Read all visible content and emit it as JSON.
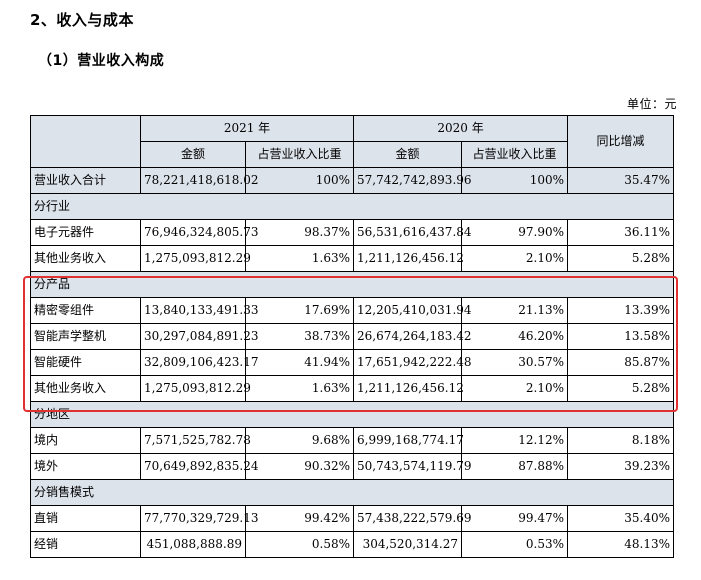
{
  "heading": "2、收入与成本",
  "subheading": "（1）营业收入构成",
  "unit": "单位：元",
  "header": {
    "year_2021": "2021 年",
    "year_2020": "2020 年",
    "yoy": "同比增减",
    "amount": "金额",
    "ratio": "占营业收入比重"
  },
  "rows": {
    "total": {
      "label": "营业收入合计",
      "amt2021": "78,221,418,618.02",
      "pct2021": "100%",
      "amt2020": "57,742,742,893.96",
      "pct2020": "100%",
      "yoy": "35.47%"
    },
    "sec_industry": "分行业",
    "ind1": {
      "label": "电子元器件",
      "amt2021": "76,946,324,805.73",
      "pct2021": "98.37%",
      "amt2020": "56,531,616,437.84",
      "pct2020": "97.90%",
      "yoy": "36.11%"
    },
    "ind2": {
      "label": "其他业务收入",
      "amt2021": "1,275,093,812.29",
      "pct2021": "1.63%",
      "amt2020": "1,211,126,456.12",
      "pct2020": "2.10%",
      "yoy": "5.28%"
    },
    "sec_product": "分产品",
    "prd1": {
      "label": "精密零组件",
      "amt2021": "13,840,133,491.33",
      "pct2021": "17.69%",
      "amt2020": "12,205,410,031.94",
      "pct2020": "21.13%",
      "yoy": "13.39%"
    },
    "prd2": {
      "label": "智能声学整机",
      "amt2021": "30,297,084,891.23",
      "pct2021": "38.73%",
      "amt2020": "26,674,264,183.42",
      "pct2020": "46.20%",
      "yoy": "13.58%"
    },
    "prd3": {
      "label": "智能硬件",
      "amt2021": "32,809,106,423.17",
      "pct2021": "41.94%",
      "amt2020": "17,651,942,222.48",
      "pct2020": "30.57%",
      "yoy": "85.87%"
    },
    "prd4": {
      "label": "其他业务收入",
      "amt2021": "1,275,093,812.29",
      "pct2021": "1.63%",
      "amt2020": "1,211,126,456.12",
      "pct2020": "2.10%",
      "yoy": "5.28%"
    },
    "sec_region": "分地区",
    "reg1": {
      "label": "境内",
      "amt2021": "7,571,525,782.78",
      "pct2021": "9.68%",
      "amt2020": "6,999,168,774.17",
      "pct2020": "12.12%",
      "yoy": "8.18%"
    },
    "reg2": {
      "label": "境外",
      "amt2021": "70,649,892,835.24",
      "pct2021": "90.32%",
      "amt2020": "50,743,574,119.79",
      "pct2020": "87.88%",
      "yoy": "39.23%"
    },
    "sec_sales": "分销售模式",
    "sal1": {
      "label": "直销",
      "amt2021": "77,770,329,729.13",
      "pct2021": "99.42%",
      "amt2020": "57,438,222,579.69",
      "pct2020": "99.47%",
      "yoy": "35.40%"
    },
    "sal2": {
      "label": "经销",
      "amt2021": "451,088,888.89",
      "pct2021": "0.58%",
      "amt2020": "304,520,314.27",
      "pct2020": "0.53%",
      "yoy": "48.13%"
    }
  },
  "highlight_color": "#e03131",
  "header_shade_color": "#dde3eb"
}
